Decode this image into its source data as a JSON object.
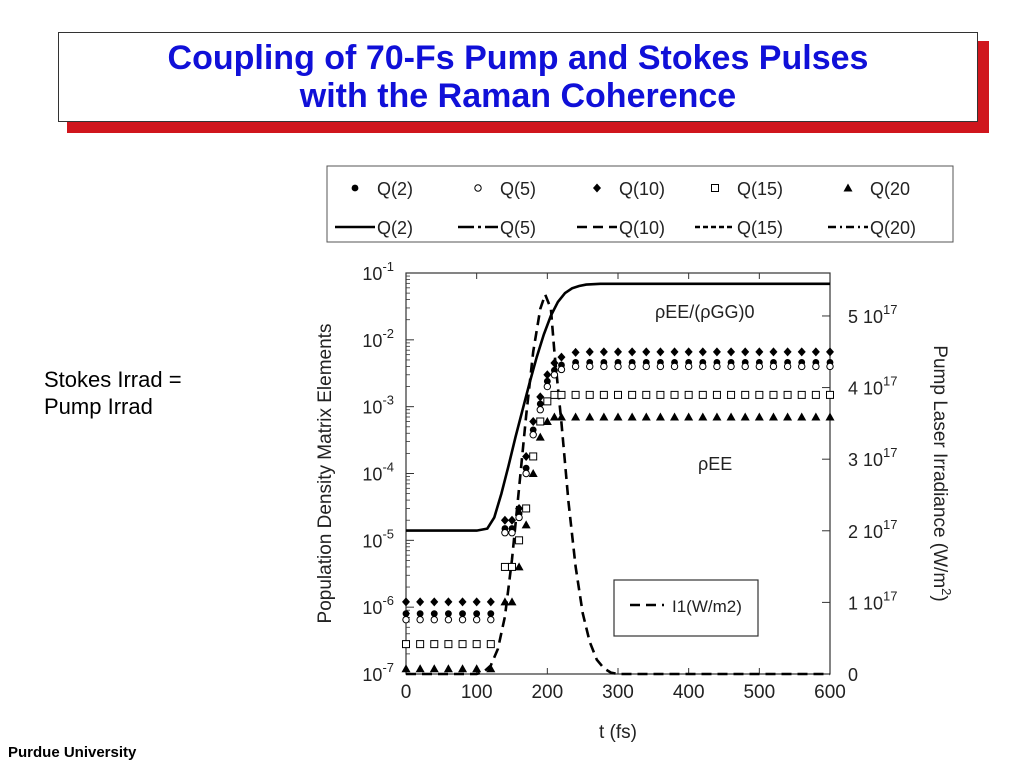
{
  "title": {
    "line1": "Coupling of 70-Fs Pump and Stokes Pulses",
    "line2": "with the Raman Coherence"
  },
  "side_note": {
    "line1": "Stokes Irrad =",
    "line2": "Pump Irrad"
  },
  "footer": "Purdue University",
  "chart_data": {
    "type": "scatter",
    "xlabel": "t (fs)",
    "ylabel": "Population Density Matrix Elements",
    "y2label": "Pump Laser Irradiance (W/m^2)",
    "x_ticks": [
      "0",
      "100",
      "200",
      "300",
      "400",
      "500",
      "600"
    ],
    "xlim": [
      0,
      600
    ],
    "ylim_log": [
      1e-07,
      0.1
    ],
    "y_scale": "log",
    "y_ticks": [
      {
        "base": "10",
        "exp": "-1"
      },
      {
        "base": "10",
        "exp": "-2"
      },
      {
        "base": "10",
        "exp": "-3"
      },
      {
        "base": "10",
        "exp": "-4"
      },
      {
        "base": "10",
        "exp": "-5"
      },
      {
        "base": "10",
        "exp": "-6"
      },
      {
        "base": "10",
        "exp": "-7"
      }
    ],
    "y2lim": [
      0,
      5.6e+17
    ],
    "y2_ticks": [
      {
        "base": "5 10",
        "exp": "17"
      },
      {
        "base": "4 10",
        "exp": "17"
      },
      {
        "base": "3 10",
        "exp": "17"
      },
      {
        "base": "2 10",
        "exp": "17"
      },
      {
        "base": "1 10",
        "exp": "17"
      },
      {
        "base": "0",
        "exp": ""
      }
    ],
    "legend_rows": [
      [
        "Q(2)",
        "Q(5)",
        "Q(10)",
        "Q(15)",
        "Q(20"
      ],
      [
        "Q(2)",
        "Q(5)",
        "Q(10)",
        "Q(15)",
        "Q(20)"
      ]
    ],
    "legend_position": "top",
    "annotations": {
      "ratio": "ρEE/(ρGG)0",
      "ree": "ρEE",
      "pulse_legend": "I1(W/m2)"
    },
    "series_points": {
      "x": [
        0,
        20,
        40,
        60,
        80,
        100,
        120,
        140,
        150,
        160,
        170,
        180,
        190,
        200,
        210,
        220,
        240,
        260,
        280,
        300,
        320,
        340,
        360,
        380,
        400,
        420,
        440,
        460,
        480,
        500,
        520,
        540,
        560,
        580,
        600
      ],
      "Q10": [
        1.2e-06,
        1.2e-06,
        1.2e-06,
        1.2e-06,
        1.2e-06,
        1.2e-06,
        1.2e-06,
        2e-05,
        2e-05,
        3e-05,
        0.00018,
        0.0006,
        0.0014,
        0.003,
        0.0045,
        0.0055,
        0.0065,
        0.0066,
        0.0066,
        0.0066,
        0.0066,
        0.0066,
        0.0066,
        0.0066,
        0.0066,
        0.0066,
        0.0066,
        0.0066,
        0.0066,
        0.0066,
        0.0066,
        0.0066,
        0.0066,
        0.0066,
        0.0066
      ],
      "Q2": [
        8e-07,
        8e-07,
        8e-07,
        8e-07,
        8e-07,
        8e-07,
        8e-07,
        1.5e-05,
        1.5e-05,
        2.5e-05,
        0.00012,
        0.00045,
        0.0011,
        0.0024,
        0.0035,
        0.0042,
        0.0046,
        0.0046,
        0.0046,
        0.0046,
        0.0046,
        0.0046,
        0.0046,
        0.0046,
        0.0046,
        0.0046,
        0.0046,
        0.0046,
        0.0046,
        0.0046,
        0.0046,
        0.0046,
        0.0046,
        0.0046,
        0.0046
      ],
      "Q5": [
        6.5e-07,
        6.5e-07,
        6.5e-07,
        6.5e-07,
        6.5e-07,
        6.5e-07,
        6.5e-07,
        1.3e-05,
        1.3e-05,
        2.2e-05,
        0.0001,
        0.00038,
        0.0009,
        0.002,
        0.003,
        0.0036,
        0.004,
        0.004,
        0.004,
        0.004,
        0.004,
        0.004,
        0.004,
        0.004,
        0.004,
        0.004,
        0.004,
        0.004,
        0.004,
        0.004,
        0.004,
        0.004,
        0.004,
        0.004,
        0.004
      ],
      "Q15": [
        2.8e-07,
        2.8e-07,
        2.8e-07,
        2.8e-07,
        2.8e-07,
        2.8e-07,
        2.8e-07,
        4e-06,
        4e-06,
        1e-05,
        3e-05,
        0.00018,
        0.0006,
        0.0012,
        0.0015,
        0.0015,
        0.0015,
        0.0015,
        0.0015,
        0.0015,
        0.0015,
        0.0015,
        0.0015,
        0.0015,
        0.0015,
        0.0015,
        0.0015,
        0.0015,
        0.0015,
        0.0015,
        0.0015,
        0.0015,
        0.0015,
        0.0015,
        0.0015
      ],
      "Q20": [
        1.2e-07,
        1.2e-07,
        1.2e-07,
        1.2e-07,
        1.2e-07,
        1.2e-07,
        1.2e-07,
        1.2e-06,
        1.2e-06,
        4e-06,
        1.7e-05,
        0.0001,
        0.00035,
        0.0006,
        0.0007,
        0.0007,
        0.0007,
        0.0007,
        0.0007,
        0.0007,
        0.0007,
        0.0007,
        0.0007,
        0.0007,
        0.0007,
        0.0007,
        0.0007,
        0.0007,
        0.0007,
        0.0007,
        0.0007,
        0.0007,
        0.0007,
        0.0007,
        0.0007
      ]
    },
    "ratio_curve": {
      "x": [
        0,
        100,
        115,
        125,
        135,
        145,
        155,
        165,
        175,
        185,
        195,
        205,
        215,
        225,
        235,
        245,
        255,
        265,
        275,
        290,
        320,
        400,
        500,
        600
      ],
      "y": [
        1.4e-05,
        1.4e-05,
        1.5e-05,
        2.2e-05,
        5e-05,
        0.00013,
        0.00035,
        0.0009,
        0.0023,
        0.0055,
        0.012,
        0.023,
        0.037,
        0.05,
        0.059,
        0.064,
        0.067,
        0.068,
        0.069,
        0.069,
        0.069,
        0.069,
        0.069,
        0.069
      ]
    },
    "pulse_curve": {
      "x": [
        0,
        100,
        110,
        120,
        130,
        140,
        150,
        160,
        170,
        180,
        190,
        197,
        205,
        210,
        220,
        230,
        240,
        250,
        260,
        270,
        280,
        290,
        300,
        320,
        400,
        500,
        600
      ],
      "y": [
        0,
        0,
        3000000000000000.0,
        1.2e+16,
        3.5e+16,
        8e+16,
        1.6e+17,
        2.6e+17,
        3.6e+17,
        4.5e+17,
        5.1e+17,
        5.3e+17,
        5.1e+17,
        4.5e+17,
        3.5e+17,
        2.4e+17,
        1.5e+17,
        8.5e+16,
        4.5e+16,
        2e+16,
        8000000000000000.0,
        2000000000000000.0,
        0,
        0,
        0,
        0,
        0
      ]
    }
  }
}
